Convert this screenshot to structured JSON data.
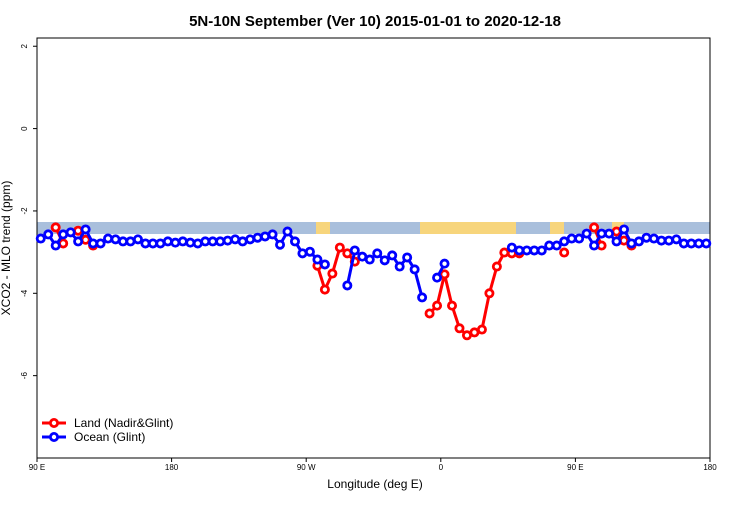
{
  "chart_data": {
    "type": "line",
    "title": "5N-10N September (Ver 10)   2015-01-01 to 2020-12-18",
    "x_label": "Longitude (deg E)",
    "y_label": "XCO2 - MLO trend (ppm)",
    "xlim": [
      90,
      540
    ],
    "xticks": [
      {
        "value": 90,
        "label": "90 E"
      },
      {
        "value": 180,
        "label": "180"
      },
      {
        "value": 270,
        "label": "90 W"
      },
      {
        "value": 360,
        "label": "0"
      },
      {
        "value": 450,
        "label": "90 E"
      },
      {
        "value": 540,
        "label": "180"
      }
    ],
    "ylim": [
      -8,
      2.2
    ],
    "yticks": [
      2,
      0,
      -2,
      -4,
      -6
    ],
    "legend": "bottom-left",
    "series": [
      {
        "name": "Land (Nadir&Glint)",
        "color": "#ff0000",
        "x": [
          102.5,
          107.5,
          112.5,
          117.5,
          122.5,
          127.5,
          132.5,
          277.5,
          282.5,
          287.5,
          292.5,
          297.5,
          302.5,
          307.5,
          352.5,
          357.5,
          362.5,
          367.5,
          372.5,
          377.5,
          382.5,
          387.5,
          392.5,
          397.5,
          402.5,
          407.5,
          412.5,
          417.5,
          442.5,
          447.5,
          462.5,
          467.5,
          472.5,
          477.5,
          482.5,
          487.5
        ],
        "values": [
          -2.4,
          -2.79,
          null,
          -2.48,
          -2.7,
          -2.84,
          null,
          -3.33,
          -3.91,
          -3.52,
          -2.89,
          -3.03,
          -3.23,
          null,
          -4.49,
          -4.3,
          -3.54,
          -4.3,
          -4.85,
          -5.02,
          -4.95,
          -4.88,
          -4.0,
          -3.35,
          -3.01,
          -3.03,
          -3.03,
          null,
          -3.01,
          null,
          -2.4,
          -2.84,
          null,
          -2.5,
          -2.72,
          -2.84
        ]
      },
      {
        "name": "Ocean (Glint)",
        "color": "#0000ff",
        "x": [
          92.5,
          97.5,
          102.5,
          107.5,
          112.5,
          117.5,
          122.5,
          127.5,
          132.5,
          137.5,
          142.5,
          147.5,
          152.5,
          157.5,
          162.5,
          167.5,
          172.5,
          177.5,
          182.5,
          187.5,
          192.5,
          197.5,
          202.5,
          207.5,
          212.5,
          217.5,
          222.5,
          227.5,
          232.5,
          237.5,
          242.5,
          247.5,
          252.5,
          257.5,
          262.5,
          267.5,
          272.5,
          277.5,
          282.5,
          287.5,
          297.5,
          302.5,
          307.5,
          312.5,
          317.5,
          322.5,
          327.5,
          332.5,
          337.5,
          342.5,
          347.5,
          352.5,
          357.5,
          362.5,
          367.5,
          407.5,
          412.5,
          417.5,
          422.5,
          427.5,
          432.5,
          437.5,
          442.5,
          447.5,
          452.5,
          457.5,
          462.5,
          467.5,
          472.5,
          477.5,
          482.5,
          487.5,
          492.5,
          497.5,
          502.5,
          507.5,
          512.5,
          517.5,
          522.5,
          527.5,
          532.5,
          537.5
        ],
        "values": [
          -2.67,
          -2.57,
          -2.84,
          -2.57,
          -2.52,
          -2.74,
          -2.45,
          -2.79,
          -2.79,
          -2.67,
          -2.69,
          -2.74,
          -2.74,
          -2.69,
          -2.79,
          -2.79,
          -2.79,
          -2.74,
          -2.77,
          -2.74,
          -2.77,
          -2.79,
          -2.74,
          -2.74,
          -2.74,
          -2.72,
          -2.69,
          -2.74,
          -2.69,
          -2.65,
          -2.62,
          -2.57,
          -2.82,
          -2.5,
          -2.74,
          -3.03,
          -2.99,
          -3.18,
          -3.3,
          null,
          -3.81,
          -2.96,
          -3.11,
          -3.18,
          -3.03,
          -3.2,
          -3.08,
          -3.35,
          -3.13,
          -3.42,
          -4.1,
          null,
          -3.62,
          -3.28,
          null,
          -2.89,
          -2.96,
          -2.96,
          -2.96,
          -2.96,
          -2.84,
          -2.84,
          -2.74,
          -2.67,
          -2.67,
          -2.55,
          -2.84,
          -2.55,
          -2.55,
          -2.74,
          -2.45,
          -2.79,
          -2.74,
          -2.65,
          -2.67,
          -2.72,
          -2.72,
          -2.69,
          -2.79,
          -2.79,
          -2.79,
          -2.79
        ]
      }
    ]
  }
}
